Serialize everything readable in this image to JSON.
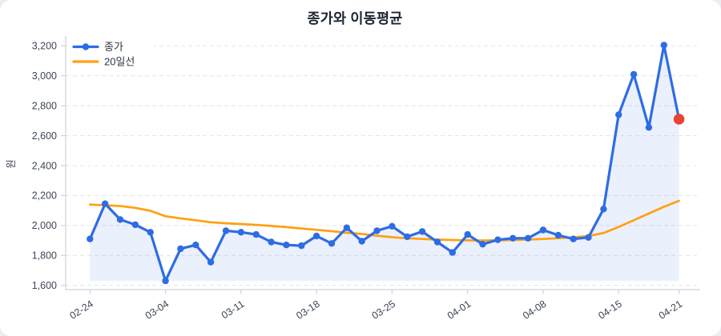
{
  "page": {
    "background": "#e9edf5",
    "card_background": "#ffffff"
  },
  "title": "종가와 이동평균",
  "chart_data": {
    "type": "line",
    "title": "종가와 이동평균",
    "xlabel": "",
    "ylabel": "원",
    "grid": "horizontal-dashed",
    "legend_position": "top-left",
    "y_ticks": [
      1600,
      1800,
      2000,
      2200,
      2400,
      2600,
      2800,
      3000,
      3200
    ],
    "ylim": [
      1570,
      3265
    ],
    "x_tick_labels": [
      "02-24",
      "03-04",
      "03-11",
      "03-18",
      "03-25",
      "04-01",
      "04-08",
      "04-15",
      "04-21"
    ],
    "x_tick_indices": [
      0,
      5,
      10,
      15,
      20,
      25,
      30,
      35,
      39
    ],
    "categories": [
      "02-24",
      "02-25",
      "02-26",
      "02-27",
      "02-28",
      "03-04",
      "03-05",
      "03-06",
      "03-07",
      "03-10",
      "03-11",
      "03-12",
      "03-13",
      "03-14",
      "03-17",
      "03-18",
      "03-19",
      "03-20",
      "03-21",
      "03-24",
      "03-25",
      "03-26",
      "03-27",
      "03-28",
      "03-31",
      "04-01",
      "04-02",
      "04-03",
      "04-04",
      "04-07",
      "04-08",
      "04-09",
      "04-10",
      "04-11",
      "04-14",
      "04-15",
      "04-16",
      "04-17",
      "04-18",
      "04-21"
    ],
    "series": [
      {
        "name": "종가",
        "style": "line-with-markers",
        "color": "#2e6ce4",
        "fill_color": "rgba(46,108,228,0.10)",
        "values": [
          1910,
          2145,
          2040,
          2005,
          1955,
          1630,
          1845,
          1870,
          1755,
          1965,
          1955,
          1940,
          1890,
          1870,
          1865,
          1930,
          1880,
          1985,
          1895,
          1965,
          1995,
          1925,
          1960,
          1890,
          1820,
          1940,
          1875,
          1905,
          1915,
          1915,
          1970,
          1935,
          1910,
          1920,
          2110,
          2740,
          3010,
          2655,
          3205,
          2710
        ]
      },
      {
        "name": "20일선",
        "style": "line",
        "color": "#ffa011",
        "values": [
          2140,
          2135,
          2130,
          2118,
          2098,
          2062,
          2048,
          2035,
          2022,
          2015,
          2010,
          2004,
          1997,
          1989,
          1980,
          1971,
          1962,
          1952,
          1943,
          1932,
          1922,
          1915,
          1910,
          1906,
          1903,
          1901,
          1900,
          1901,
          1903,
          1906,
          1910,
          1915,
          1921,
          1930,
          1950,
          1990,
          2035,
          2080,
          2125,
          2165
        ]
      }
    ],
    "highlight": {
      "type": "last-point",
      "series": "종가",
      "date": "04-21",
      "value": 2710,
      "color": "#ea4335"
    },
    "axis_colors": {
      "tick_text": "#3d4656",
      "title_text": "#1c2433",
      "legend_text": "#2c3545",
      "gridline": "#e7e7ea",
      "spine": "#ccd2dd"
    }
  }
}
